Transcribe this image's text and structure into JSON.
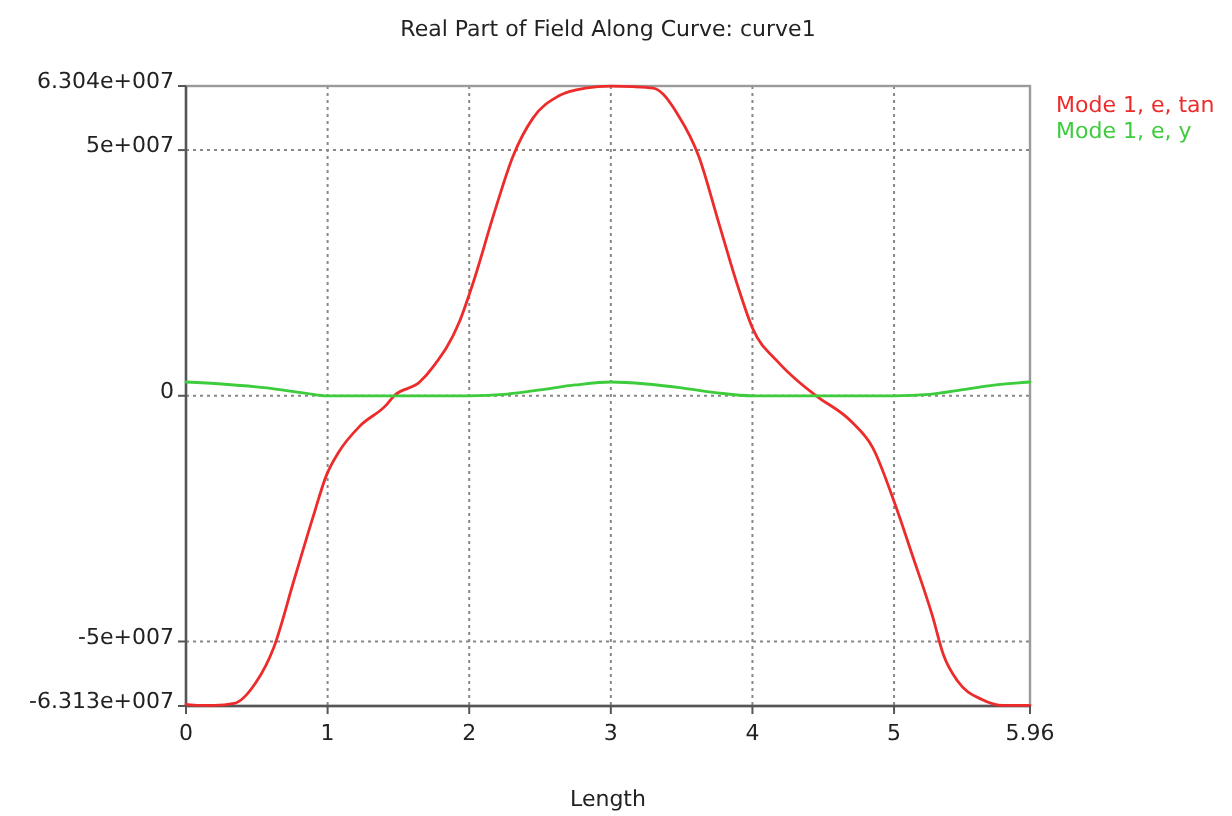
{
  "chart_data": {
    "type": "line",
    "title": "Real Part of Field Along Curve: curve1",
    "xlabel": "Length",
    "xlim": [
      0,
      5.96
    ],
    "xticks": [
      0,
      1,
      2,
      3,
      4,
      5,
      5.96
    ],
    "ylim": [
      -63130000,
      63040000
    ],
    "yticks": [
      {
        "value": -63130000,
        "label": "-6.313e+007"
      },
      {
        "value": -50000000,
        "label": "-5e+007"
      },
      0,
      {
        "value": 50000000,
        "label": "5e+007"
      },
      {
        "value": 63040000,
        "label": "6.304e+007"
      }
    ],
    "grid": true,
    "legend": "top right",
    "line_style": "solid",
    "series": [
      {
        "name": "Mode 1, e, tan",
        "color": "#ee2b2b",
        "x": [
          0,
          0.1,
          0.2,
          0.34,
          0.49,
          0.62,
          0.76,
          0.9,
          0.99,
          1.08,
          1.23,
          1.41,
          1.47,
          1.65,
          1.75,
          1.93,
          2.03,
          2.17,
          2.31,
          2.45,
          2.63,
          2.82,
          3.0,
          3.15,
          3.3,
          3.48,
          3.62,
          3.76,
          3.9,
          4.0,
          4.18,
          4.32,
          4.45,
          4.7,
          4.85,
          5.0,
          5.13,
          5.27,
          5.35,
          5.45,
          5.62,
          5.77,
          5.96
        ],
        "values": [
          -62800000,
          -63000000,
          -63000000,
          -62600000,
          -58500000,
          -51200000,
          -37800000,
          -24400000,
          -16300000,
          -11400000,
          -6100000,
          -2000000,
          0,
          2800000,
          6100000,
          15000000,
          23200000,
          36600000,
          48800000,
          56500000,
          61000000,
          62600000,
          63000000,
          62900000,
          62600000,
          56900000,
          48800000,
          35400000,
          22000000,
          13800000,
          6900000,
          3000000,
          0,
          -5300000,
          -10600000,
          -21500000,
          -32500000,
          -44700000,
          -52800000,
          -58100000,
          -61800000,
          -63000000,
          -63000000
        ]
      },
      {
        "name": "Mode 1, e, y",
        "color": "#3ccc3c",
        "x": [
          0,
          0.25,
          0.57,
          0.85,
          1.0,
          1.5,
          2.0,
          2.25,
          2.5,
          2.75,
          3.0,
          3.25,
          3.5,
          3.75,
          4.0,
          4.5,
          5.0,
          5.25,
          5.5,
          5.75,
          5.96
        ],
        "values": [
          2800000,
          2400000,
          1600000,
          500000,
          0,
          0,
          0,
          300000,
          1200000,
          2200000,
          2800000,
          2400000,
          1600000,
          600000,
          0,
          0,
          0,
          300000,
          1300000,
          2300000,
          2800000
        ]
      }
    ]
  }
}
